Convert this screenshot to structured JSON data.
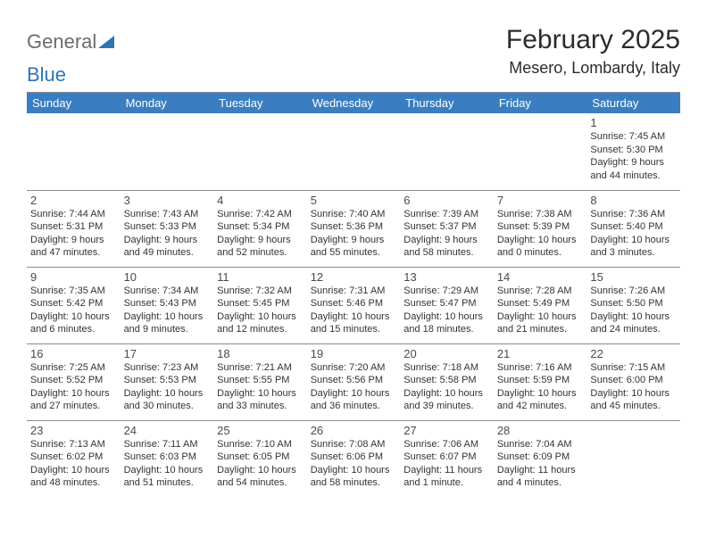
{
  "logo": {
    "word1": "General",
    "word2": "Blue"
  },
  "title": "February 2025",
  "location": "Mesero, Lombardy, Italy",
  "colors": {
    "header_bg": "#3a7ec1",
    "header_text": "#ffffff",
    "border": "#8a8a8a",
    "logo_gray": "#6b6b6b",
    "logo_blue": "#2f74b5",
    "title_color": "#2b2b2b",
    "text": "#333333"
  },
  "day_names": [
    "Sunday",
    "Monday",
    "Tuesday",
    "Wednesday",
    "Thursday",
    "Friday",
    "Saturday"
  ],
  "weeks": [
    [
      null,
      null,
      null,
      null,
      null,
      null,
      {
        "n": "1",
        "sr": "7:45 AM",
        "ss": "5:30 PM",
        "dl": "9 hours and 44 minutes."
      }
    ],
    [
      {
        "n": "2",
        "sr": "7:44 AM",
        "ss": "5:31 PM",
        "dl": "9 hours and 47 minutes."
      },
      {
        "n": "3",
        "sr": "7:43 AM",
        "ss": "5:33 PM",
        "dl": "9 hours and 49 minutes."
      },
      {
        "n": "4",
        "sr": "7:42 AM",
        "ss": "5:34 PM",
        "dl": "9 hours and 52 minutes."
      },
      {
        "n": "5",
        "sr": "7:40 AM",
        "ss": "5:36 PM",
        "dl": "9 hours and 55 minutes."
      },
      {
        "n": "6",
        "sr": "7:39 AM",
        "ss": "5:37 PM",
        "dl": "9 hours and 58 minutes."
      },
      {
        "n": "7",
        "sr": "7:38 AM",
        "ss": "5:39 PM",
        "dl": "10 hours and 0 minutes."
      },
      {
        "n": "8",
        "sr": "7:36 AM",
        "ss": "5:40 PM",
        "dl": "10 hours and 3 minutes."
      }
    ],
    [
      {
        "n": "9",
        "sr": "7:35 AM",
        "ss": "5:42 PM",
        "dl": "10 hours and 6 minutes."
      },
      {
        "n": "10",
        "sr": "7:34 AM",
        "ss": "5:43 PM",
        "dl": "10 hours and 9 minutes."
      },
      {
        "n": "11",
        "sr": "7:32 AM",
        "ss": "5:45 PM",
        "dl": "10 hours and 12 minutes."
      },
      {
        "n": "12",
        "sr": "7:31 AM",
        "ss": "5:46 PM",
        "dl": "10 hours and 15 minutes."
      },
      {
        "n": "13",
        "sr": "7:29 AM",
        "ss": "5:47 PM",
        "dl": "10 hours and 18 minutes."
      },
      {
        "n": "14",
        "sr": "7:28 AM",
        "ss": "5:49 PM",
        "dl": "10 hours and 21 minutes."
      },
      {
        "n": "15",
        "sr": "7:26 AM",
        "ss": "5:50 PM",
        "dl": "10 hours and 24 minutes."
      }
    ],
    [
      {
        "n": "16",
        "sr": "7:25 AM",
        "ss": "5:52 PM",
        "dl": "10 hours and 27 minutes."
      },
      {
        "n": "17",
        "sr": "7:23 AM",
        "ss": "5:53 PM",
        "dl": "10 hours and 30 minutes."
      },
      {
        "n": "18",
        "sr": "7:21 AM",
        "ss": "5:55 PM",
        "dl": "10 hours and 33 minutes."
      },
      {
        "n": "19",
        "sr": "7:20 AM",
        "ss": "5:56 PM",
        "dl": "10 hours and 36 minutes."
      },
      {
        "n": "20",
        "sr": "7:18 AM",
        "ss": "5:58 PM",
        "dl": "10 hours and 39 minutes."
      },
      {
        "n": "21",
        "sr": "7:16 AM",
        "ss": "5:59 PM",
        "dl": "10 hours and 42 minutes."
      },
      {
        "n": "22",
        "sr": "7:15 AM",
        "ss": "6:00 PM",
        "dl": "10 hours and 45 minutes."
      }
    ],
    [
      {
        "n": "23",
        "sr": "7:13 AM",
        "ss": "6:02 PM",
        "dl": "10 hours and 48 minutes."
      },
      {
        "n": "24",
        "sr": "7:11 AM",
        "ss": "6:03 PM",
        "dl": "10 hours and 51 minutes."
      },
      {
        "n": "25",
        "sr": "7:10 AM",
        "ss": "6:05 PM",
        "dl": "10 hours and 54 minutes."
      },
      {
        "n": "26",
        "sr": "7:08 AM",
        "ss": "6:06 PM",
        "dl": "10 hours and 58 minutes."
      },
      {
        "n": "27",
        "sr": "7:06 AM",
        "ss": "6:07 PM",
        "dl": "11 hours and 1 minute."
      },
      {
        "n": "28",
        "sr": "7:04 AM",
        "ss": "6:09 PM",
        "dl": "11 hours and 4 minutes."
      },
      null
    ]
  ],
  "labels": {
    "sunrise": "Sunrise:",
    "sunset": "Sunset:",
    "daylight": "Daylight:"
  }
}
